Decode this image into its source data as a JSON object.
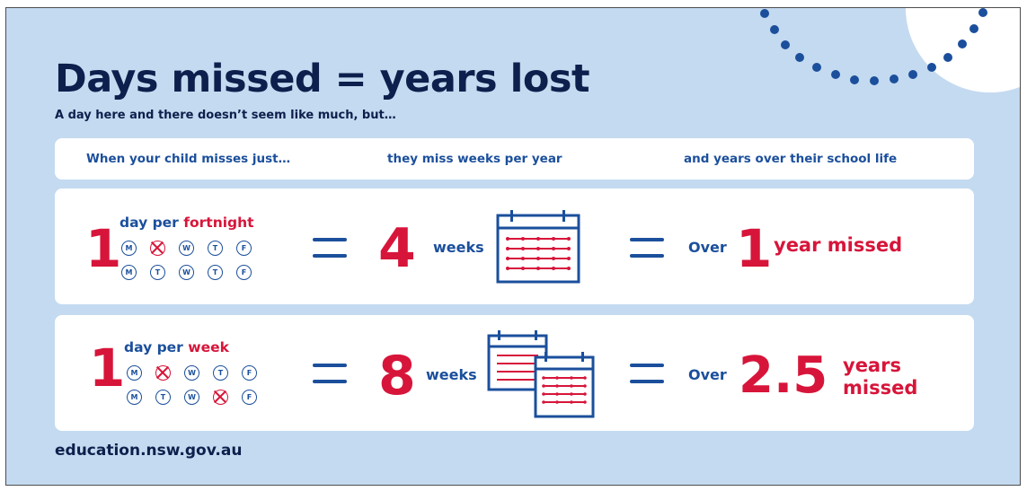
{
  "title": "Days missed = years lost",
  "subtitle": "A day here and there doesn’t seem like much, but…",
  "columns": [
    "When your child misses just…",
    "they miss weeks per year",
    "and years over their school life"
  ],
  "rows": [
    {
      "count": "1",
      "per_prefix": "day per",
      "period": "fortnight",
      "week1": [
        "M",
        "T",
        "W",
        "T",
        "F"
      ],
      "week2": [
        "M",
        "T",
        "W",
        "T",
        "F"
      ],
      "missed": [
        [
          false,
          true,
          false,
          false,
          false
        ],
        [
          false,
          false,
          false,
          false,
          false
        ]
      ],
      "weeks_number": "4",
      "weeks_label": "weeks",
      "over_label": "Over",
      "years_number": "1",
      "years_line1": "year missed",
      "years_line2": ""
    },
    {
      "count": "1",
      "per_prefix": "day per",
      "period": "week",
      "week1": [
        "M",
        "T",
        "W",
        "T",
        "F"
      ],
      "week2": [
        "M",
        "T",
        "W",
        "T",
        "F"
      ],
      "missed": [
        [
          false,
          true,
          false,
          false,
          false
        ],
        [
          false,
          false,
          false,
          true,
          false
        ]
      ],
      "weeks_number": "8",
      "weeks_label": "weeks",
      "over_label": "Over",
      "years_number": "2.5",
      "years_line1": "years",
      "years_line2": "missed"
    }
  ],
  "footer": "education.nsw.gov.au",
  "colors": {
    "background": "#c4daf0",
    "navy": "#0d1f4c",
    "blue": "#1b4f9c",
    "red": "#d7153a",
    "white": "#ffffff"
  },
  "icons": [
    "calendar-icon",
    "calendar-stack-icon",
    "decorative-dot-arc",
    "equals-sign"
  ]
}
